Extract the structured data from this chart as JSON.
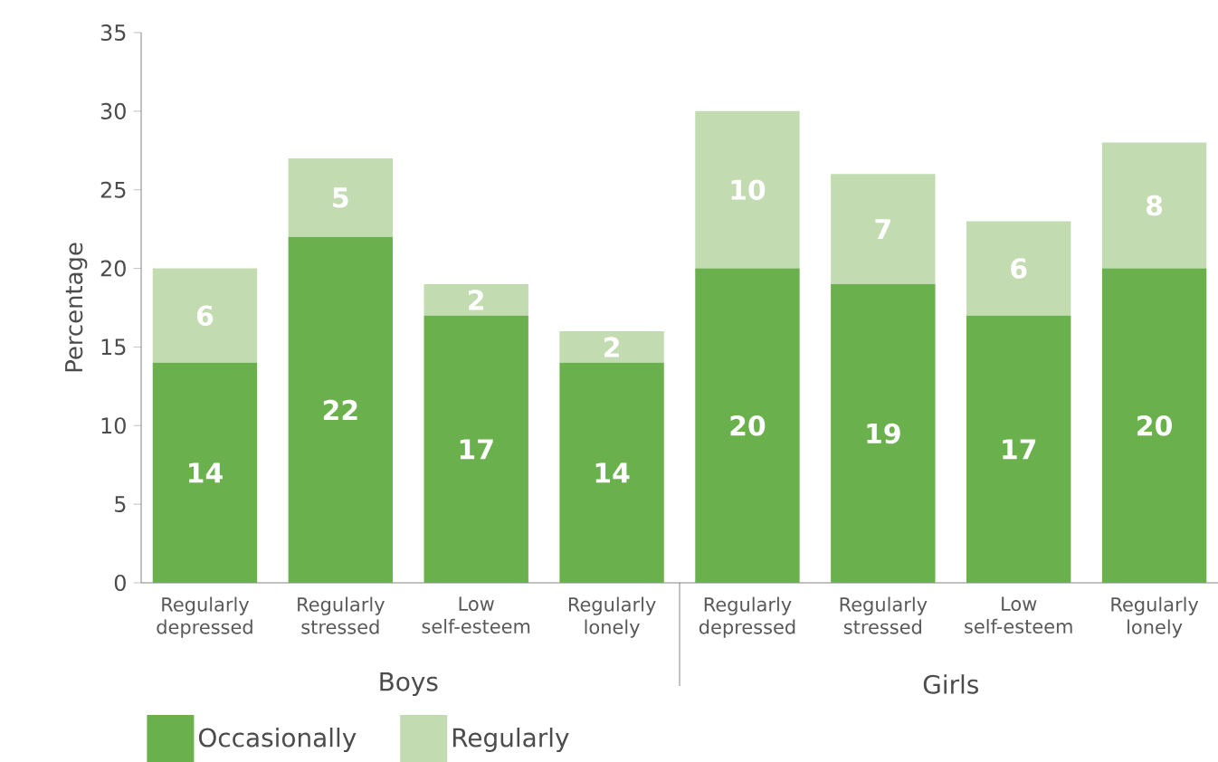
{
  "chart_data": {
    "type": "bar",
    "stacked": true,
    "ylabel": "Percentage",
    "categories": [
      "Regularly depressed",
      "Regularly stressed",
      "Low self-esteem",
      "Regularly lonely",
      "Regularly depressed",
      "Regularly stressed",
      "Low self-esteem",
      "Regularly lonely"
    ],
    "series": [
      {
        "name": "Occasionally",
        "color": "#6ab04c",
        "values": [
          14,
          22,
          17,
          14,
          20,
          19,
          17,
          20
        ]
      },
      {
        "name": "Regularly",
        "color": "#c2dbb0",
        "values": [
          6,
          5,
          2,
          2,
          10,
          7,
          6,
          8
        ]
      }
    ],
    "annotations": [
      "Boys",
      "Girls"
    ],
    "ylim": [
      0,
      35
    ],
    "yticks": [
      0,
      5,
      10,
      15,
      20,
      25,
      30,
      35
    ],
    "data_labels": true,
    "legend": "bottom left"
  }
}
